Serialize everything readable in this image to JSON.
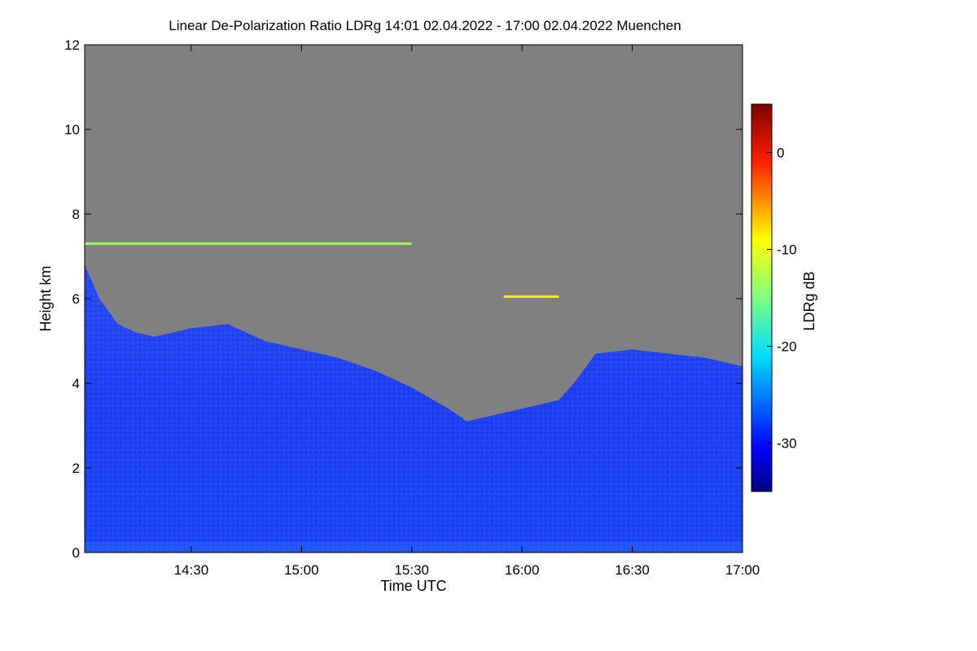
{
  "chart_data": {
    "type": "heatmap",
    "title": "Linear De-Polarization Ratio LDRg   14:01 02.04.2022 - 17:00 02.04.2022 Muenchen",
    "xlabel": "Time UTC",
    "ylabel": "Height km",
    "x_range": [
      "14:01",
      "17:00"
    ],
    "x_ticks": [
      "14:30",
      "15:00",
      "15:30",
      "16:00",
      "16:30",
      "17:00"
    ],
    "ylim": [
      0,
      12
    ],
    "y_ticks": [
      0,
      2,
      4,
      6,
      8,
      10,
      12
    ],
    "colorbar": {
      "label": "LDRg dB",
      "range": [
        -35,
        5
      ],
      "ticks": [
        0,
        -10,
        -20,
        -30
      ]
    },
    "no_signal_color": "#808080",
    "cloud_top_profile": {
      "time": [
        "14:01",
        "14:05",
        "14:10",
        "14:15",
        "14:20",
        "14:30",
        "14:40",
        "14:50",
        "15:00",
        "15:10",
        "15:20",
        "15:30",
        "15:40",
        "15:45",
        "15:50",
        "16:00",
        "16:10",
        "16:15",
        "16:20",
        "16:30",
        "16:40",
        "16:50",
        "17:00"
      ],
      "height_km": [
        6.8,
        6.0,
        5.4,
        5.2,
        5.1,
        5.3,
        5.4,
        5.0,
        4.8,
        4.6,
        4.3,
        3.9,
        3.4,
        3.1,
        3.2,
        3.4,
        3.6,
        4.1,
        4.7,
        4.8,
        4.7,
        4.6,
        4.4
      ]
    },
    "layers": [
      {
        "name": "",
        "height_km": 7.3,
        "time_start": "14:01",
        "time_end": "15:30",
        "ldr_db": -12
      },
      {
        "name": "",
        "height_km": 6.05,
        "time_start": "15:55",
        "time_end": "16:10",
        "ldr_db": -8
      }
    ]
  }
}
